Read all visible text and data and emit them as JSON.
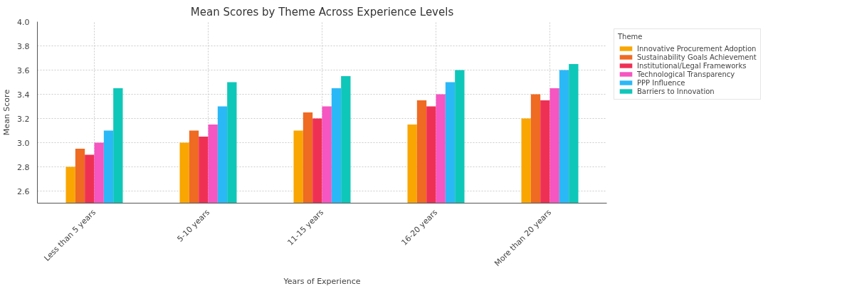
{
  "chart_data": {
    "type": "bar",
    "title": "Mean Scores by Theme Across Experience Levels",
    "xlabel": "Years of Experience",
    "ylabel": "Mean Score",
    "legend_title": "Theme",
    "categories": [
      "Less than 5 years",
      "5-10 years",
      "11-15 years",
      "16-20 years",
      "More than 20 years"
    ],
    "series": [
      {
        "name": "Innovative Procurement Adoption",
        "color": "#f9a602",
        "values": [
          2.8,
          3.0,
          3.1,
          3.15,
          3.2
        ]
      },
      {
        "name": "Sustainability Goals Achievement",
        "color": "#ef6a22",
        "values": [
          2.95,
          3.1,
          3.25,
          3.35,
          3.4
        ]
      },
      {
        "name": "Institutional/Legal Frameworks",
        "color": "#ef3055",
        "values": [
          2.9,
          3.05,
          3.2,
          3.3,
          3.35
        ]
      },
      {
        "name": "Technological Transparency",
        "color": "#f556c1",
        "values": [
          3.0,
          3.15,
          3.3,
          3.4,
          3.45
        ]
      },
      {
        "name": "PPP Influence",
        "color": "#2bb8f7",
        "values": [
          3.1,
          3.3,
          3.45,
          3.5,
          3.6
        ]
      },
      {
        "name": "Barriers to Innovation",
        "color": "#0fc7b9",
        "values": [
          3.45,
          3.5,
          3.55,
          3.6,
          3.65
        ]
      }
    ],
    "ylim": [
      2.5,
      4.0
    ],
    "yticks": [
      2.6,
      2.8,
      {
        "value": 3,
        "label": "3.0"
      },
      3.2,
      3.4,
      3.6,
      3.8,
      {
        "value": 4,
        "label": "4.0"
      }
    ],
    "grid": true,
    "legend": "top right"
  }
}
